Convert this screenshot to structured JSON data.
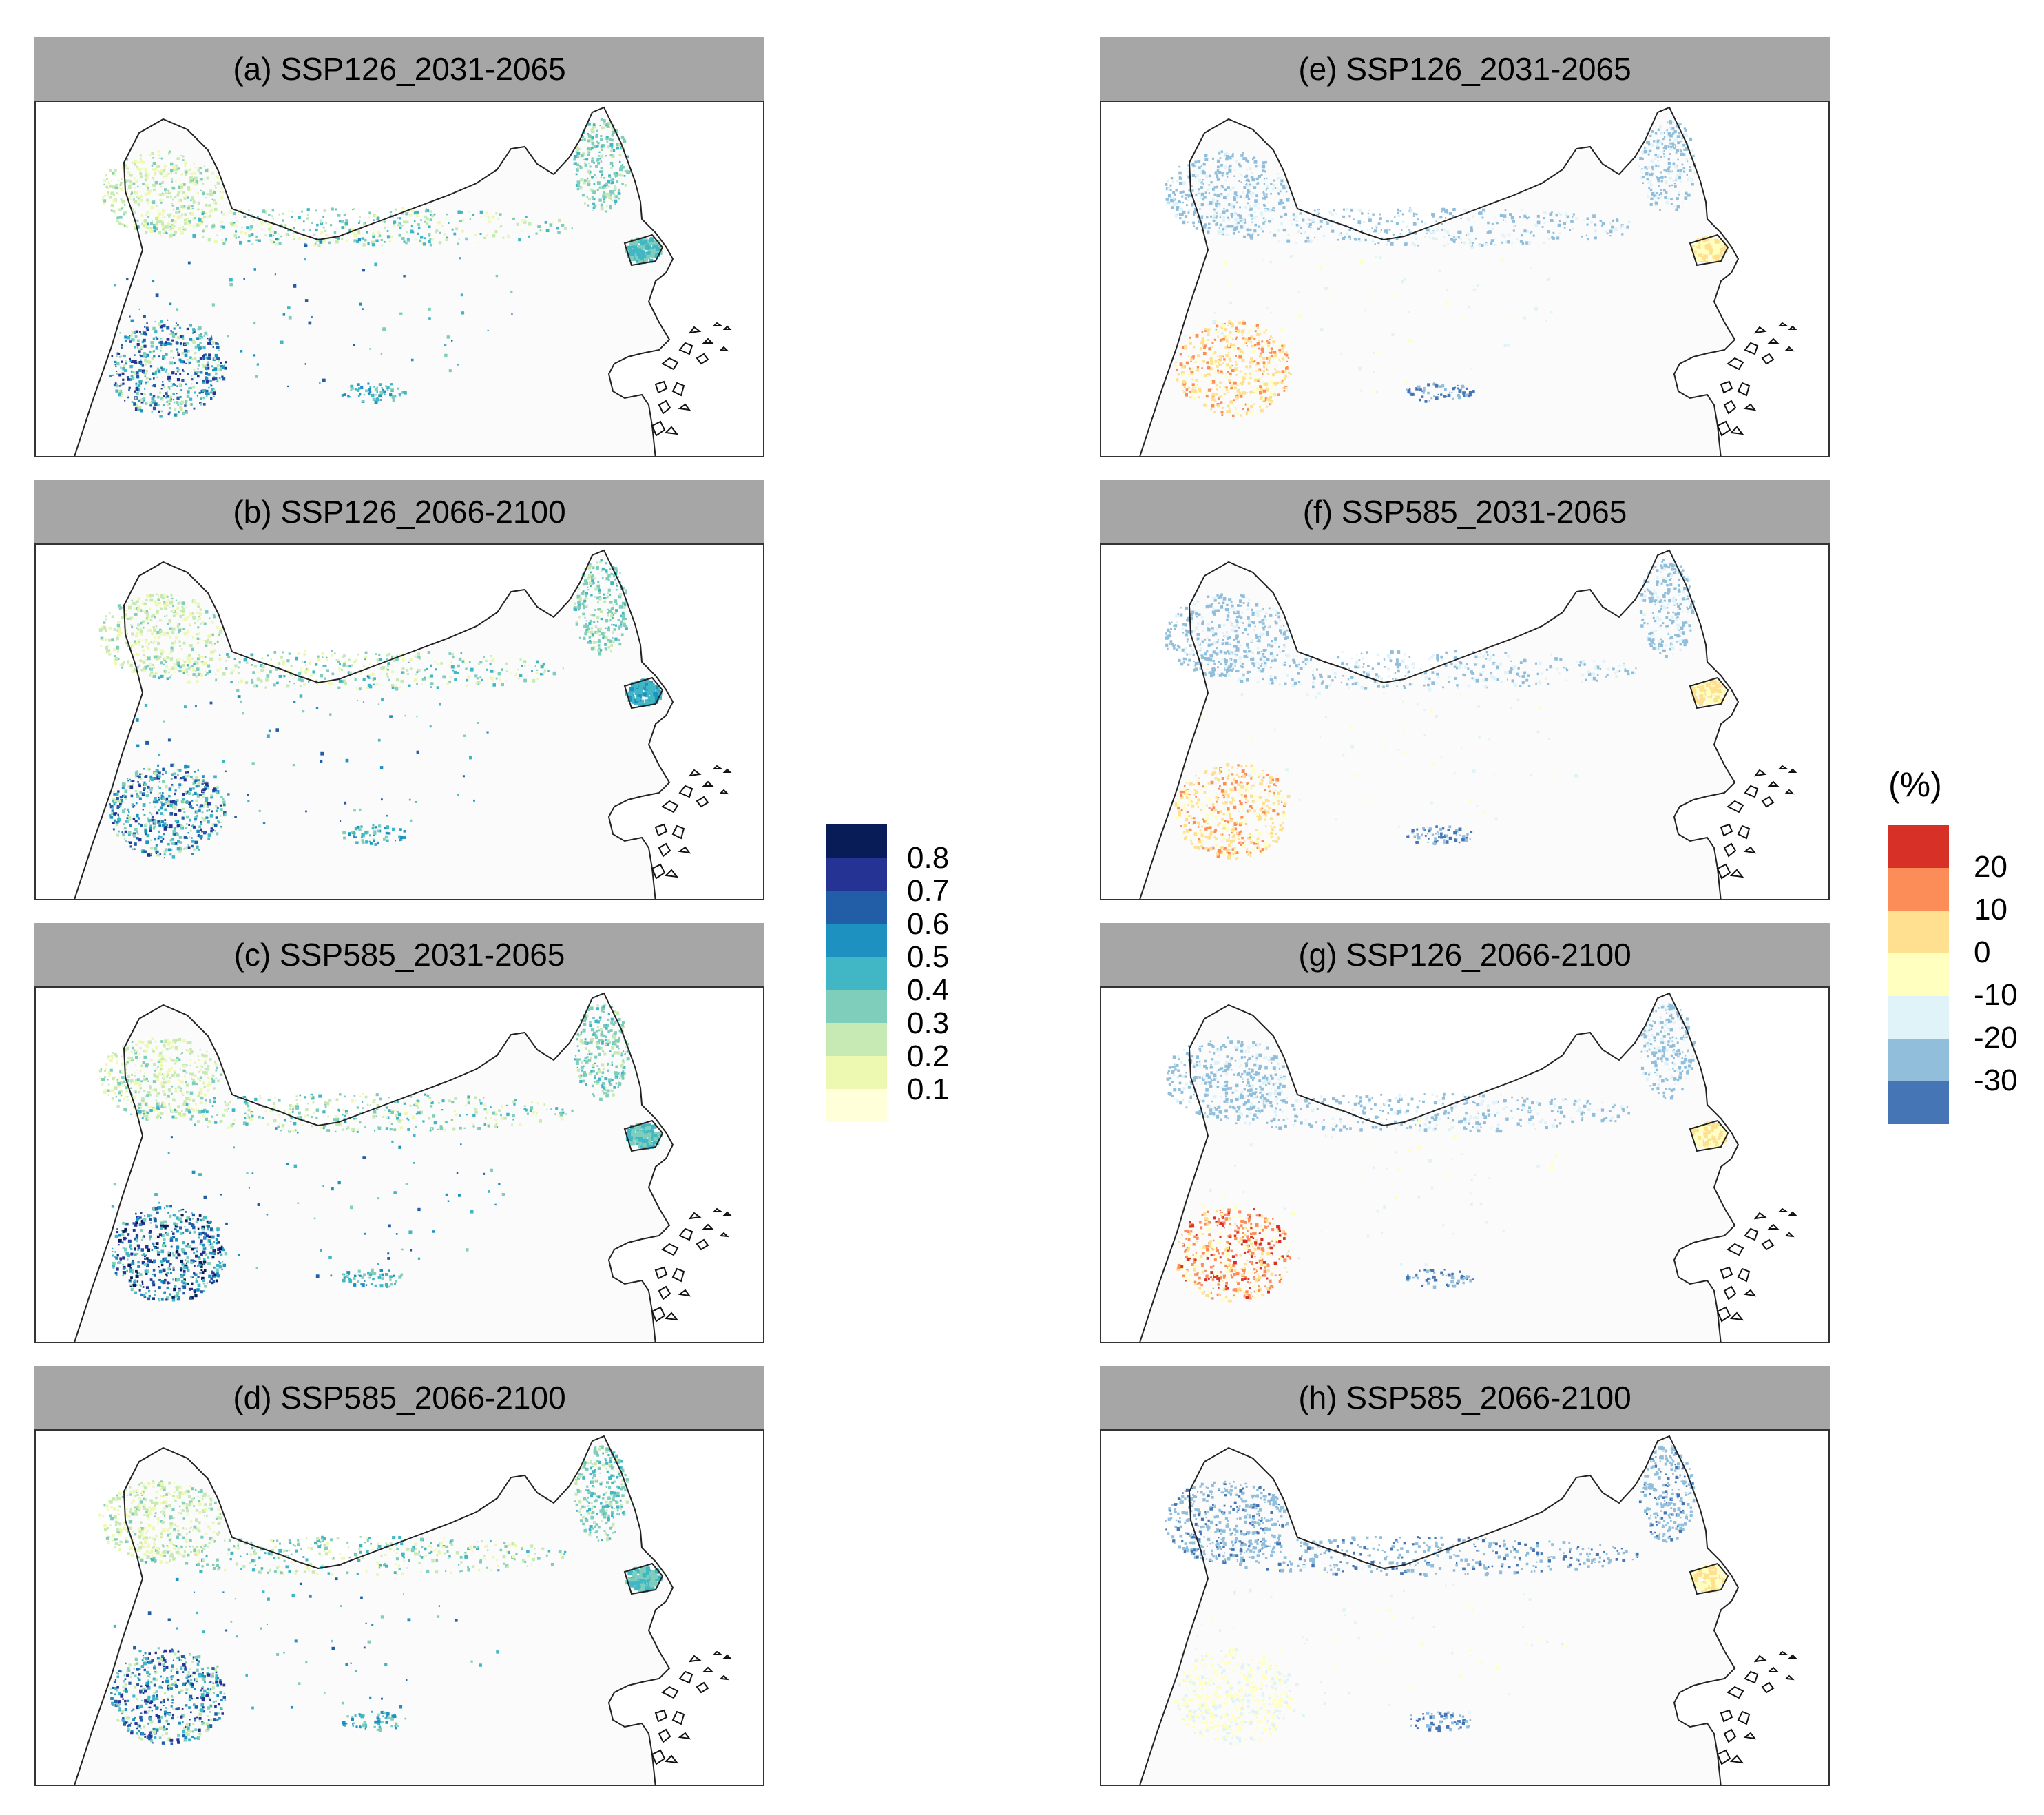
{
  "panels": [
    {
      "id": "a",
      "title": "(a) SSP126_2031-2065",
      "variable": "probability"
    },
    {
      "id": "b",
      "title": "(b) SSP126_2066-2100",
      "variable": "probability"
    },
    {
      "id": "c",
      "title": "(c) SSP585_2031-2065",
      "variable": "probability"
    },
    {
      "id": "d",
      "title": "(d) SSP585_2066-2100",
      "variable": "probability"
    },
    {
      "id": "e",
      "title": "(e) SSP126_2031-2065",
      "variable": "change"
    },
    {
      "id": "f",
      "title": "(f) SSP585_2031-2065",
      "variable": "change"
    },
    {
      "id": "g",
      "title": "(g) SSP126_2066-2100",
      "variable": "change"
    },
    {
      "id": "h",
      "title": "(h) SSP585_2066-2100",
      "variable": "change"
    }
  ],
  "legend_left": {
    "title": "",
    "colors": [
      "#081d58",
      "#253494",
      "#225ea8",
      "#1d91c0",
      "#41b6c4",
      "#7fcdbb",
      "#c7e9b4",
      "#edf8b1",
      "#ffffd9"
    ],
    "labels": [
      "0.8",
      "0.7",
      "0.6",
      "0.5",
      "0.4",
      "0.3",
      "0.2",
      "0.1"
    ]
  },
  "legend_right": {
    "title": "(%)",
    "colors": [
      "#d73027",
      "#fc8d59",
      "#fee090",
      "#ffffbf",
      "#e0f3f8",
      "#91bfdb",
      "#4575b4"
    ],
    "labels": [
      "20",
      "10",
      "0",
      "-10",
      "-20",
      "-30"
    ]
  }
}
